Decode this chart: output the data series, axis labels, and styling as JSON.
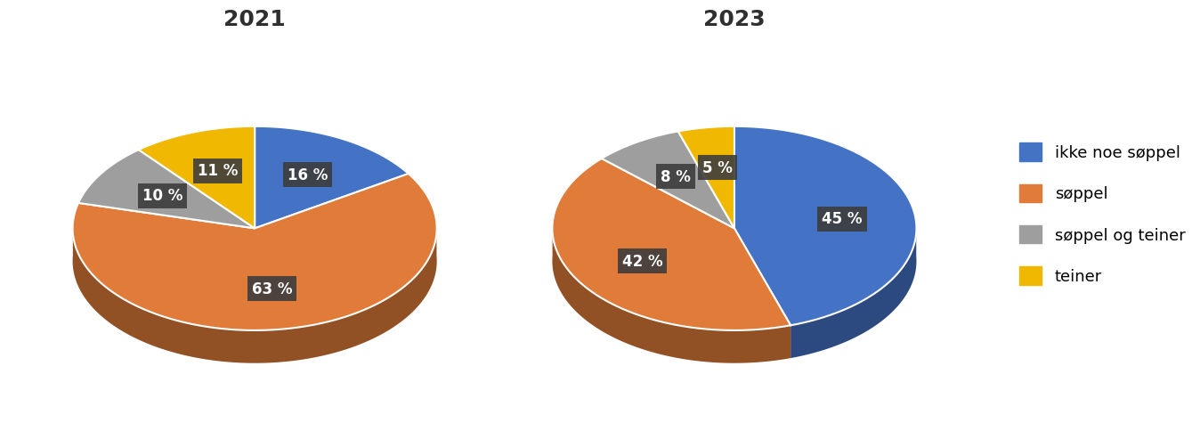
{
  "chart2021": {
    "title": "2021",
    "values": [
      16,
      63,
      10,
      11
    ],
    "labels": [
      "16 %",
      "63 %",
      "10 %",
      "11 %"
    ],
    "colors": [
      "#4472C4",
      "#E07B39",
      "#9E9E9E",
      "#F0B800"
    ],
    "startangle": 90
  },
  "chart2023": {
    "title": "2023",
    "values": [
      45,
      42,
      8,
      5
    ],
    "labels": [
      "45 %",
      "42 %",
      "8 %",
      "5 %"
    ],
    "colors": [
      "#4472C4",
      "#E07B39",
      "#9E9E9E",
      "#F0B800"
    ],
    "startangle": 90
  },
  "legend_labels": [
    "ikke noe søppel",
    "søppel",
    "søppel og teiner",
    "teiner"
  ],
  "legend_colors": [
    "#4472C4",
    "#E07B39",
    "#9E9E9E",
    "#F0B800"
  ],
  "label_bg_color": "#3D3D3D",
  "label_text_color": "#FFFFFF",
  "title_fontsize": 18,
  "label_fontsize": 12,
  "legend_fontsize": 13,
  "shadow_color_2021": "#8B3A00",
  "shadow_color_2023": "#8B3A00",
  "edge_color_2021": "#7B3200",
  "edge_color_2023": "#2A4A6A",
  "background_color": "#FFFFFF",
  "pie_aspect": 0.55,
  "depth": 0.22
}
